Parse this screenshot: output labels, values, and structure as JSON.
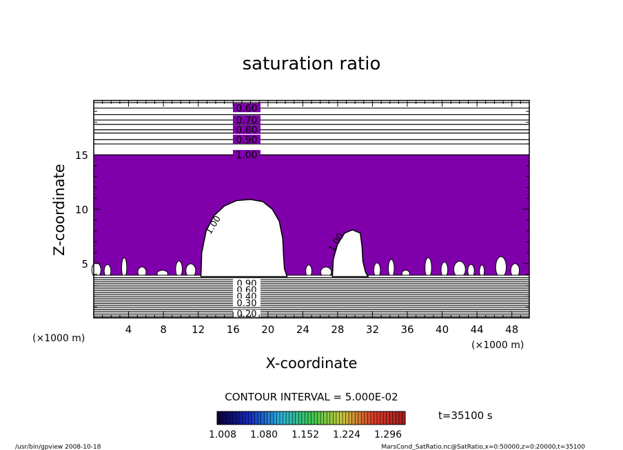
{
  "chart_data": {
    "type": "contour",
    "title": "saturation ratio",
    "xlabel": "X-coordinate",
    "ylabel": "Z-coordinate",
    "x_unit_left": "(×1000 m)",
    "x_unit_right": "(×1000 m)",
    "xlim": [
      0,
      50
    ],
    "ylim": [
      0,
      20
    ],
    "x_ticks": [
      {
        "v": 4,
        "label": "4"
      },
      {
        "v": 8,
        "label": "8"
      },
      {
        "v": 12,
        "label": "12"
      },
      {
        "v": 16,
        "label": "16"
      },
      {
        "v": 20,
        "label": "20"
      },
      {
        "v": 24,
        "label": "24"
      },
      {
        "v": 28,
        "label": "28"
      },
      {
        "v": 32,
        "label": "32"
      },
      {
        "v": 36,
        "label": "36"
      },
      {
        "v": 40,
        "label": "40"
      },
      {
        "v": 44,
        "label": "44"
      },
      {
        "v": 48,
        "label": "48"
      }
    ],
    "y_ticks": [
      {
        "v": 5,
        "label": "5"
      },
      {
        "v": 10,
        "label": "10"
      },
      {
        "v": 15,
        "label": "15"
      }
    ],
    "fill_color": "#7f00aa",
    "fill_zone": [
      3.8,
      15
    ],
    "upper_levels": [
      {
        "z": 19.3,
        "label": "0.60"
      },
      {
        "z": 18.2,
        "label": "0.70"
      },
      {
        "z": 17.3,
        "label": "0.80"
      },
      {
        "z": 16.4,
        "label": "0.90"
      },
      {
        "z": 15.0,
        "label": "1.00"
      }
    ],
    "upper_extra_lines": [
      19.8,
      18.7,
      17.8,
      17.0,
      16.0
    ],
    "lower_levels": [
      {
        "z": 3.2,
        "label": "0.90"
      },
      {
        "z": 2.6,
        "label": "0.60"
      },
      {
        "z": 2.0,
        "label": "0.40"
      },
      {
        "z": 1.4,
        "label": "0.30"
      },
      {
        "z": 0.4,
        "label": "0.20"
      }
    ],
    "lower_line_range": [
      0.1,
      3.7
    ],
    "lower_line_count": 22,
    "clouds": [
      {
        "label": "1.00",
        "label_x": 14.0,
        "label_y": 8.4,
        "outline": [
          [
            12.3,
            3.8
          ],
          [
            12.4,
            6.0
          ],
          [
            12.9,
            8.0
          ],
          [
            13.8,
            9.4
          ],
          [
            15.0,
            10.3
          ],
          [
            16.4,
            10.8
          ],
          [
            18.0,
            10.9
          ],
          [
            19.4,
            10.7
          ],
          [
            20.5,
            10.0
          ],
          [
            21.3,
            8.9
          ],
          [
            21.7,
            7.3
          ],
          [
            21.8,
            5.6
          ],
          [
            21.9,
            4.5
          ],
          [
            22.2,
            3.8
          ]
        ]
      },
      {
        "label": "1.00",
        "label_x": 28.1,
        "label_y": 6.8,
        "outline": [
          [
            27.4,
            3.8
          ],
          [
            27.5,
            5.4
          ],
          [
            28.0,
            6.8
          ],
          [
            28.8,
            7.8
          ],
          [
            29.7,
            8.1
          ],
          [
            30.6,
            7.8
          ],
          [
            30.8,
            6.6
          ],
          [
            30.9,
            5.2
          ],
          [
            31.2,
            4.2
          ],
          [
            31.5,
            3.8
          ]
        ]
      }
    ],
    "contour_interval": "CONTOUR INTERVAL = 5.000E-02",
    "colorbar_labels": [
      "1.008",
      "1.080",
      "1.152",
      "1.224",
      "1.296"
    ],
    "time": "t=35100 s",
    "footer_left": "/usr/bin/gpview   2008-10-18",
    "footer_right": "MarsCond_SatRatio.nc@SatRatio,x=0:50000,z=0:20000,t=35100"
  }
}
